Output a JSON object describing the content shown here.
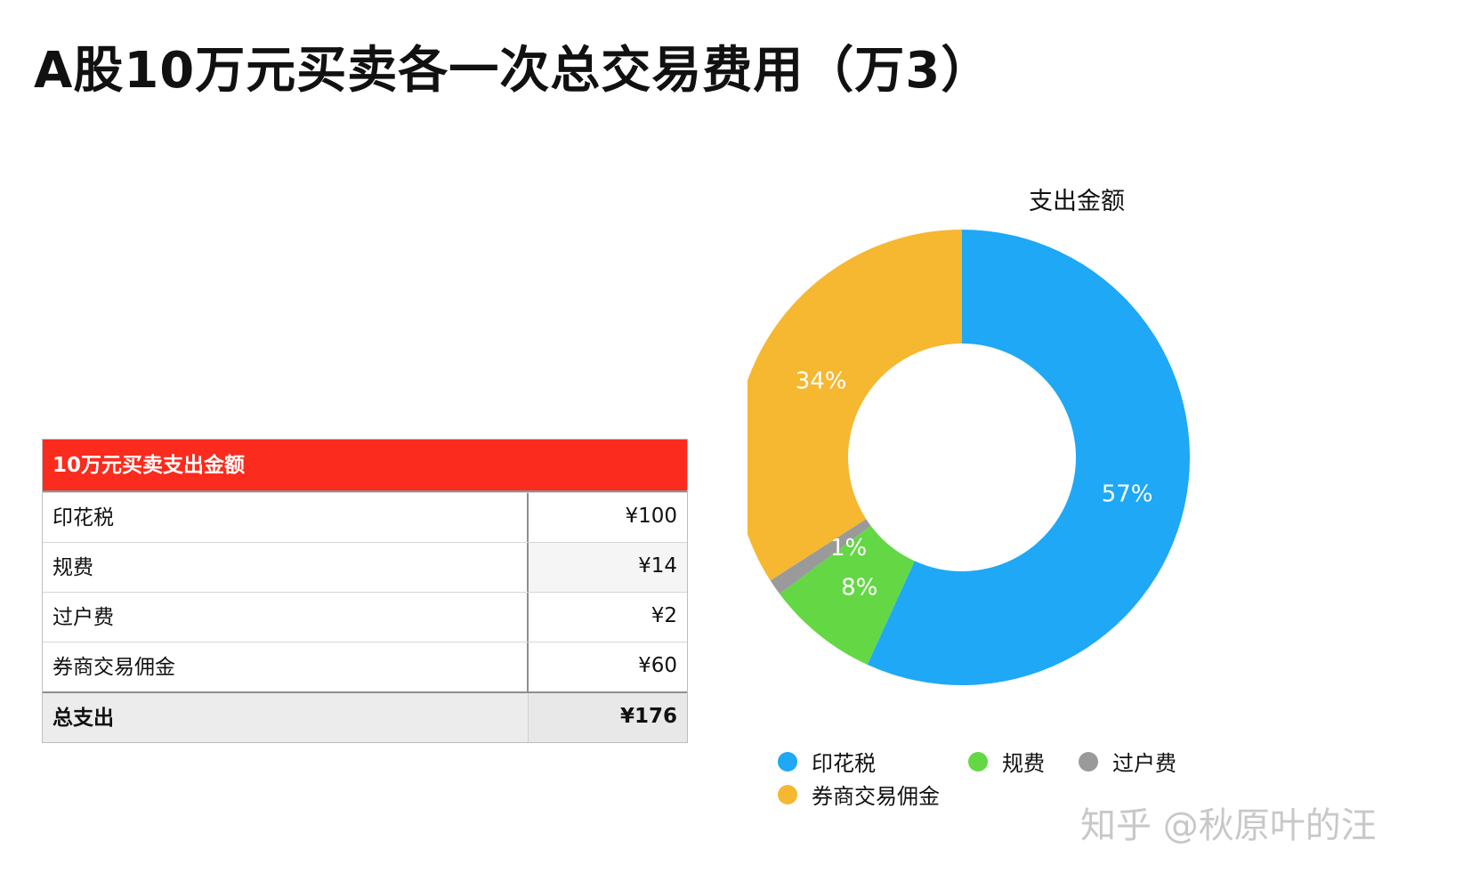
{
  "page": {
    "title": "A股10万元买卖各一次总交易费用（万3）"
  },
  "table": {
    "header": "10万元买卖支出金额",
    "rows": [
      {
        "name": "印花税",
        "value": "¥100"
      },
      {
        "name": "规费",
        "value": "¥14"
      },
      {
        "name": "过户费",
        "value": "¥2"
      },
      {
        "name": "券商交易佣金",
        "value": "¥60"
      }
    ],
    "total": {
      "name": "总支出",
      "value": "¥176"
    }
  },
  "chart_data": {
    "type": "pie",
    "title": "支出金额",
    "donut": true,
    "slices": [
      {
        "label": "印花税",
        "value": 100,
        "percent_label": "57%",
        "color": "#1ea8f6"
      },
      {
        "label": "规费",
        "value": 14,
        "percent_label": "8%",
        "color": "#64d745"
      },
      {
        "label": "过户费",
        "value": 2,
        "percent_label": "1%",
        "color": "#9a9a9a"
      },
      {
        "label": "券商交易佣金",
        "value": 60,
        "percent_label": "34%",
        "color": "#f6b731"
      }
    ],
    "legend_position": "bottom"
  },
  "watermark": "知乎 @秋原叶的汪"
}
